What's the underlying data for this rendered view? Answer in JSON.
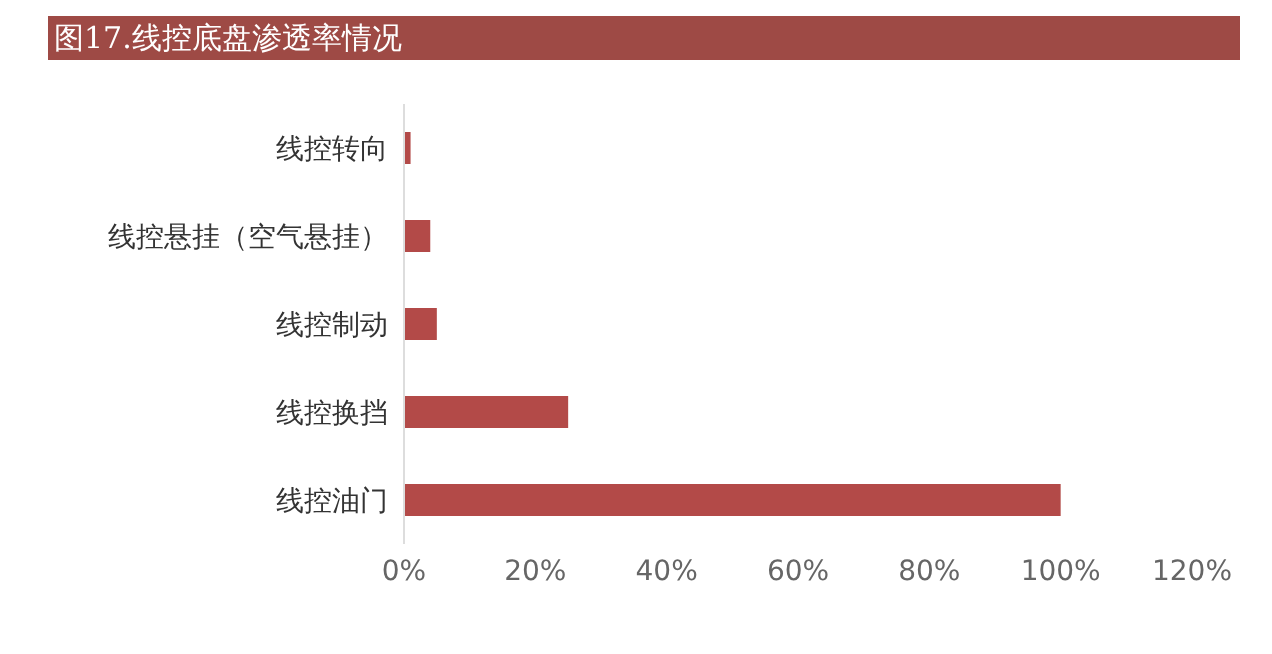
{
  "chart_data": {
    "type": "bar",
    "orientation": "horizontal",
    "title": "图17.线控底盘渗透率情况",
    "categories": [
      "线控转向",
      "线控悬挂（空气悬挂）",
      "线控制动",
      "线控换挡",
      "线控油门"
    ],
    "values": [
      1,
      4,
      5,
      25,
      100
    ],
    "color": "#b34a48",
    "xlim": [
      0,
      120
    ],
    "xticks": [
      {
        "value": 0,
        "label": "0%"
      },
      {
        "value": 20,
        "label": "20%"
      },
      {
        "value": 40,
        "label": "40%"
      },
      {
        "value": 60,
        "label": "60%"
      },
      {
        "value": 80,
        "label": "80%"
      },
      {
        "value": 100,
        "label": "100%"
      },
      {
        "value": 120,
        "label": "120%"
      }
    ],
    "grid": false,
    "legend": false
  }
}
